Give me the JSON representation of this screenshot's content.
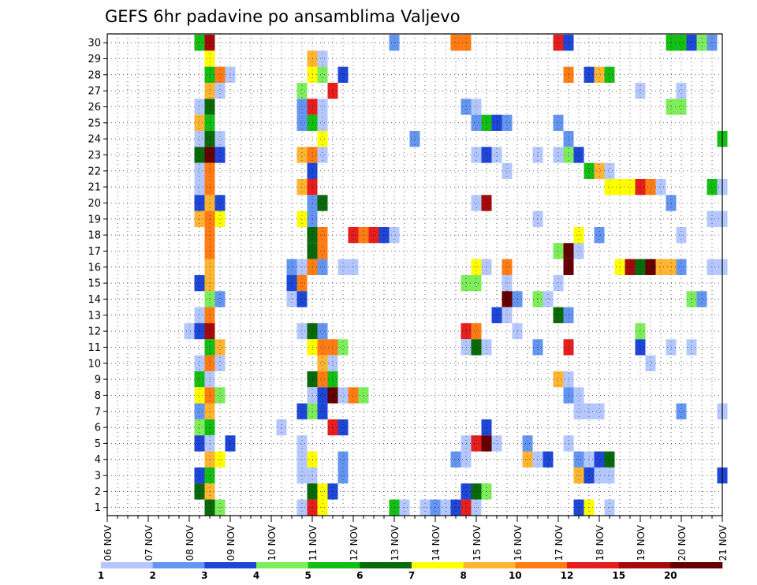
{
  "chart_data": {
    "type": "heatmap",
    "title": "GEFS 6hr padavine po ansamblima Valjevo",
    "x_labels": [
      "06 NOV",
      "07 NOV",
      "08 NOV",
      "09 NOV",
      "10 NOV",
      "11 NOV",
      "12 NOV",
      "13 NOV",
      "14 NOV",
      "15 NOV",
      "16 NOV",
      "17 NOV",
      "18 NOV",
      "19 NOV",
      "20 NOV",
      "21 NOV"
    ],
    "y_labels": [
      "1",
      "2",
      "3",
      "4",
      "5",
      "6",
      "7",
      "8",
      "9",
      "10",
      "11",
      "12",
      "13",
      "14",
      "15",
      "16",
      "17",
      "18",
      "19",
      "20",
      "21",
      "22",
      "23",
      "24",
      "25",
      "26",
      "27",
      "28",
      "29",
      "30"
    ],
    "grid": true,
    "legend": {
      "placement": "bottom",
      "levels": [
        "1",
        "2",
        "3",
        "4",
        "5",
        "6",
        "7",
        "8",
        "10",
        "12",
        "15",
        "20"
      ],
      "colors": [
        "#b4c8ff",
        "#6495f0",
        "#1e46d7",
        "#7ded5b",
        "#14be14",
        "#0a690a",
        "#ffff00",
        "#ffb432",
        "#ff7d14",
        "#e61e1e",
        "#a50a0a",
        "#640000"
      ]
    },
    "cells": [
      [
        30,
        9,
        4
      ],
      [
        30,
        10,
        10
      ],
      [
        30,
        28,
        1
      ],
      [
        30,
        34,
        8
      ],
      [
        30,
        35,
        8
      ],
      [
        30,
        44,
        9
      ],
      [
        30,
        45,
        2
      ],
      [
        30,
        55,
        4
      ],
      [
        30,
        56,
        4
      ],
      [
        30,
        57,
        2
      ],
      [
        30,
        58,
        3
      ],
      [
        30,
        59,
        1
      ],
      [
        29,
        10,
        6
      ],
      [
        29,
        20,
        7
      ],
      [
        29,
        21,
        0
      ],
      [
        28,
        10,
        4
      ],
      [
        28,
        11,
        8
      ],
      [
        28,
        12,
        0
      ],
      [
        28,
        20,
        6
      ],
      [
        28,
        21,
        3
      ],
      [
        28,
        23,
        2
      ],
      [
        28,
        45,
        8
      ],
      [
        28,
        47,
        2
      ],
      [
        28,
        48,
        7
      ],
      [
        28,
        49,
        4
      ],
      [
        27,
        10,
        7
      ],
      [
        27,
        11,
        0
      ],
      [
        27,
        19,
        3
      ],
      [
        27,
        22,
        9
      ],
      [
        27,
        52,
        0
      ],
      [
        27,
        56,
        0
      ],
      [
        26,
        9,
        0
      ],
      [
        26,
        10,
        5
      ],
      [
        26,
        19,
        1
      ],
      [
        26,
        20,
        9
      ],
      [
        26,
        21,
        0
      ],
      [
        26,
        35,
        1
      ],
      [
        26,
        36,
        0
      ],
      [
        26,
        55,
        3
      ],
      [
        26,
        56,
        3
      ],
      [
        25,
        9,
        7
      ],
      [
        25,
        10,
        4
      ],
      [
        25,
        19,
        1
      ],
      [
        25,
        20,
        4
      ],
      [
        25,
        21,
        0
      ],
      [
        25,
        36,
        1
      ],
      [
        25,
        37,
        4
      ],
      [
        25,
        38,
        2
      ],
      [
        25,
        39,
        1
      ],
      [
        25,
        44,
        1
      ],
      [
        24,
        9,
        0
      ],
      [
        24,
        10,
        5
      ],
      [
        24,
        11,
        0
      ],
      [
        24,
        21,
        6
      ],
      [
        24,
        30,
        1
      ],
      [
        24,
        45,
        1
      ],
      [
        24,
        60,
        4
      ],
      [
        23,
        9,
        5
      ],
      [
        23,
        10,
        11
      ],
      [
        23,
        11,
        2
      ],
      [
        23,
        19,
        7
      ],
      [
        23,
        20,
        8
      ],
      [
        23,
        21,
        0
      ],
      [
        23,
        36,
        0
      ],
      [
        23,
        37,
        2
      ],
      [
        23,
        38,
        0
      ],
      [
        23,
        42,
        0
      ],
      [
        23,
        44,
        0
      ],
      [
        23,
        45,
        3
      ],
      [
        23,
        46,
        2
      ],
      [
        22,
        9,
        0
      ],
      [
        22,
        10,
        8
      ],
      [
        22,
        20,
        2
      ],
      [
        22,
        39,
        0
      ],
      [
        22,
        47,
        4
      ],
      [
        22,
        48,
        7
      ],
      [
        22,
        49,
        0
      ],
      [
        21,
        9,
        0
      ],
      [
        21,
        10,
        8
      ],
      [
        21,
        19,
        7
      ],
      [
        21,
        20,
        9
      ],
      [
        21,
        49,
        6
      ],
      [
        21,
        50,
        6
      ],
      [
        21,
        51,
        6
      ],
      [
        21,
        52,
        9
      ],
      [
        21,
        53,
        8
      ],
      [
        21,
        54,
        0
      ],
      [
        21,
        59,
        4
      ],
      [
        21,
        60,
        0
      ],
      [
        20,
        9,
        2
      ],
      [
        20,
        10,
        7
      ],
      [
        20,
        11,
        2
      ],
      [
        20,
        20,
        1
      ],
      [
        20,
        21,
        5
      ],
      [
        20,
        36,
        0
      ],
      [
        20,
        37,
        10
      ],
      [
        20,
        55,
        1
      ],
      [
        19,
        9,
        7
      ],
      [
        19,
        10,
        8
      ],
      [
        19,
        11,
        6
      ],
      [
        19,
        19,
        6
      ],
      [
        19,
        20,
        1
      ],
      [
        19,
        42,
        0
      ],
      [
        19,
        59,
        0
      ],
      [
        19,
        60,
        0
      ],
      [
        18,
        10,
        8
      ],
      [
        18,
        20,
        5
      ],
      [
        18,
        21,
        8
      ],
      [
        18,
        24,
        9
      ],
      [
        18,
        25,
        8
      ],
      [
        18,
        26,
        9
      ],
      [
        18,
        27,
        2
      ],
      [
        18,
        28,
        0
      ],
      [
        18,
        46,
        6
      ],
      [
        18,
        48,
        1
      ],
      [
        18,
        56,
        0
      ],
      [
        17,
        10,
        8
      ],
      [
        17,
        20,
        5
      ],
      [
        17,
        21,
        8
      ],
      [
        17,
        45,
        11
      ],
      [
        17,
        44,
        3
      ],
      [
        17,
        46,
        0
      ],
      [
        16,
        10,
        7
      ],
      [
        16,
        18,
        1
      ],
      [
        16,
        19,
        0
      ],
      [
        16,
        20,
        8
      ],
      [
        16,
        21,
        1
      ],
      [
        16,
        23,
        0
      ],
      [
        16,
        24,
        0
      ],
      [
        16,
        36,
        6
      ],
      [
        16,
        37,
        0
      ],
      [
        16,
        39,
        8
      ],
      [
        16,
        45,
        11
      ],
      [
        16,
        50,
        6
      ],
      [
        16,
        51,
        10
      ],
      [
        16,
        52,
        5
      ],
      [
        16,
        53,
        11
      ],
      [
        16,
        54,
        7
      ],
      [
        16,
        55,
        7
      ],
      [
        16,
        56,
        1
      ],
      [
        16,
        59,
        0
      ],
      [
        16,
        60,
        0
      ],
      [
        15,
        9,
        2
      ],
      [
        15,
        10,
        7
      ],
      [
        15,
        18,
        2
      ],
      [
        15,
        19,
        8
      ],
      [
        15,
        35,
        3
      ],
      [
        15,
        36,
        3
      ],
      [
        15,
        39,
        0
      ],
      [
        15,
        44,
        0
      ],
      [
        14,
        10,
        3
      ],
      [
        14,
        11,
        1
      ],
      [
        14,
        18,
        0
      ],
      [
        14,
        19,
        2
      ],
      [
        14,
        39,
        11
      ],
      [
        14,
        40,
        1
      ],
      [
        14,
        42,
        3
      ],
      [
        14,
        43,
        0
      ],
      [
        14,
        57,
        3
      ],
      [
        14,
        58,
        1
      ],
      [
        13,
        9,
        0
      ],
      [
        13,
        10,
        8
      ],
      [
        13,
        38,
        2
      ],
      [
        13,
        39,
        0
      ],
      [
        13,
        44,
        5
      ],
      [
        13,
        45,
        1
      ],
      [
        12,
        8,
        0
      ],
      [
        12,
        9,
        2
      ],
      [
        12,
        10,
        10
      ],
      [
        12,
        19,
        0
      ],
      [
        12,
        20,
        5
      ],
      [
        12,
        21,
        1
      ],
      [
        12,
        35,
        9
      ],
      [
        12,
        36,
        8
      ],
      [
        12,
        40,
        0
      ],
      [
        12,
        52,
        3
      ],
      [
        11,
        10,
        4
      ],
      [
        11,
        11,
        7
      ],
      [
        11,
        20,
        6
      ],
      [
        11,
        21,
        8
      ],
      [
        11,
        22,
        8
      ],
      [
        11,
        23,
        3
      ],
      [
        11,
        35,
        0
      ],
      [
        11,
        36,
        5
      ],
      [
        11,
        37,
        0
      ],
      [
        11,
        42,
        1
      ],
      [
        11,
        45,
        9
      ],
      [
        11,
        52,
        2
      ],
      [
        11,
        55,
        0
      ],
      [
        11,
        57,
        0
      ],
      [
        10,
        9,
        0
      ],
      [
        10,
        10,
        8
      ],
      [
        10,
        11,
        0
      ],
      [
        10,
        21,
        7
      ],
      [
        10,
        22,
        0
      ],
      [
        10,
        53,
        0
      ],
      [
        9,
        9,
        4
      ],
      [
        9,
        10,
        0
      ],
      [
        9,
        20,
        5
      ],
      [
        9,
        21,
        8
      ],
      [
        9,
        22,
        4
      ],
      [
        9,
        44,
        7
      ],
      [
        9,
        45,
        0
      ],
      [
        8,
        9,
        6
      ],
      [
        8,
        10,
        8
      ],
      [
        8,
        11,
        3
      ],
      [
        8,
        20,
        0
      ],
      [
        8,
        21,
        2
      ],
      [
        8,
        22,
        11
      ],
      [
        8,
        23,
        0
      ],
      [
        8,
        24,
        8
      ],
      [
        8,
        25,
        3
      ],
      [
        8,
        45,
        1
      ],
      [
        8,
        46,
        0
      ],
      [
        7,
        9,
        1
      ],
      [
        7,
        10,
        7
      ],
      [
        7,
        19,
        2
      ],
      [
        7,
        20,
        3
      ],
      [
        7,
        21,
        2
      ],
      [
        7,
        46,
        0
      ],
      [
        7,
        47,
        0
      ],
      [
        7,
        48,
        0
      ],
      [
        7,
        56,
        1
      ],
      [
        7,
        60,
        0
      ],
      [
        6,
        9,
        3
      ],
      [
        6,
        10,
        4
      ],
      [
        6,
        17,
        0
      ],
      [
        6,
        22,
        9
      ],
      [
        6,
        23,
        2
      ],
      [
        6,
        37,
        2
      ],
      [
        5,
        9,
        2
      ],
      [
        5,
        10,
        0
      ],
      [
        5,
        12,
        2
      ],
      [
        5,
        19,
        0
      ],
      [
        5,
        35,
        0
      ],
      [
        5,
        36,
        9
      ],
      [
        5,
        37,
        11
      ],
      [
        5,
        38,
        0
      ],
      [
        5,
        41,
        1
      ],
      [
        5,
        45,
        0
      ],
      [
        4,
        10,
        7
      ],
      [
        4,
        11,
        6
      ],
      [
        4,
        19,
        0
      ],
      [
        4,
        20,
        6
      ],
      [
        4,
        23,
        1
      ],
      [
        4,
        34,
        1
      ],
      [
        4,
        35,
        0
      ],
      [
        4,
        41,
        7
      ],
      [
        4,
        42,
        0
      ],
      [
        4,
        43,
        2
      ],
      [
        4,
        46,
        1
      ],
      [
        4,
        47,
        0
      ],
      [
        4,
        48,
        2
      ],
      [
        4,
        49,
        5
      ],
      [
        3,
        9,
        2
      ],
      [
        3,
        10,
        4
      ],
      [
        3,
        19,
        0
      ],
      [
        3,
        20,
        0
      ],
      [
        3,
        23,
        1
      ],
      [
        3,
        46,
        7
      ],
      [
        3,
        47,
        2
      ],
      [
        3,
        48,
        0
      ],
      [
        3,
        49,
        0
      ],
      [
        3,
        60,
        2
      ],
      [
        2,
        9,
        5
      ],
      [
        2,
        10,
        7
      ],
      [
        2,
        20,
        5
      ],
      [
        2,
        21,
        6
      ],
      [
        2,
        22,
        2
      ],
      [
        2,
        35,
        2
      ],
      [
        2,
        36,
        5
      ],
      [
        2,
        37,
        3
      ],
      [
        1,
        10,
        5
      ],
      [
        1,
        11,
        3
      ],
      [
        1,
        19,
        0
      ],
      [
        1,
        20,
        9
      ],
      [
        1,
        21,
        6
      ],
      [
        1,
        28,
        4
      ],
      [
        1,
        29,
        0
      ],
      [
        1,
        31,
        0
      ],
      [
        1,
        32,
        1
      ],
      [
        1,
        33,
        0
      ],
      [
        1,
        34,
        2
      ],
      [
        1,
        35,
        9
      ],
      [
        1,
        36,
        0
      ],
      [
        1,
        46,
        2
      ],
      [
        1,
        47,
        6
      ],
      [
        1,
        49,
        0
      ]
    ]
  }
}
